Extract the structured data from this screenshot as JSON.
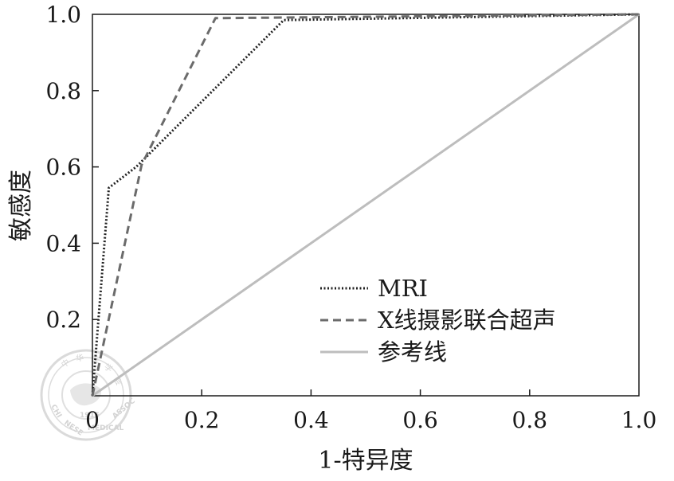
{
  "chart_data": {
    "type": "line",
    "xlabel": "1-特异度",
    "ylabel": "敏感度",
    "xlim": [
      0,
      1.0
    ],
    "ylim": [
      0,
      1.0
    ],
    "xticks": [
      "0",
      "0.2",
      "0.4",
      "0.6",
      "0.8",
      "1.0"
    ],
    "yticks": [
      "0.2",
      "0.4",
      "0.6",
      "0.8",
      "1.0"
    ],
    "grid": false,
    "legend_position": "bottom-right",
    "series": [
      {
        "name": "MRI",
        "style": "dotted",
        "color": "#222222",
        "x": [
          0,
          0.03,
          0.08,
          0.35,
          1.0
        ],
        "y": [
          0,
          0.545,
          0.6,
          0.985,
          1.0
        ]
      },
      {
        "name": "X线摄影联合超声",
        "style": "dashed",
        "color": "#6b6b6b",
        "x": [
          0,
          0.09,
          0.225,
          1.0
        ],
        "y": [
          0,
          0.605,
          0.99,
          1.0
        ]
      },
      {
        "name": "参考线",
        "style": "solid",
        "color": "#bdbdbd",
        "x": [
          0,
          1.0
        ],
        "y": [
          0,
          1.0
        ]
      }
    ]
  },
  "watermark": {
    "icon": "chinese-medical-association-seal",
    "han_text": "中华医学会",
    "latin_text": "CHINESE MEDICAL ASSOCIATION",
    "year": "1915"
  }
}
